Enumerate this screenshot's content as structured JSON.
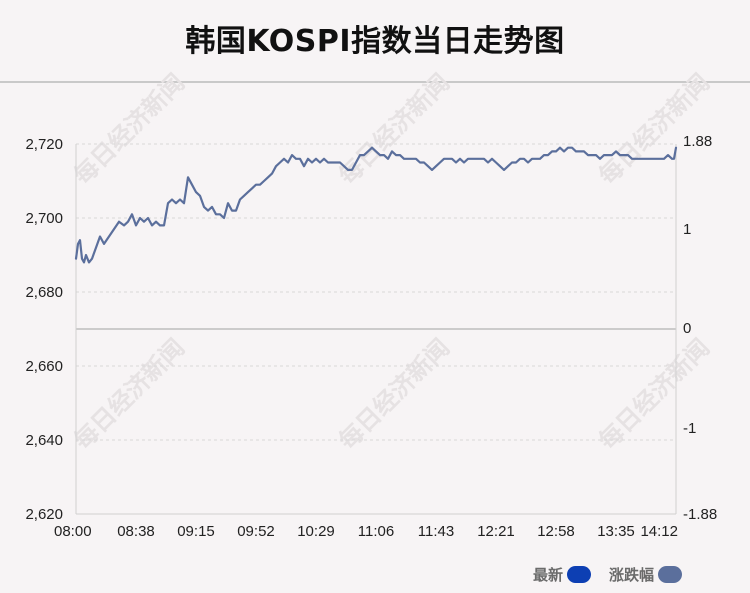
{
  "title": "韩国KOSPI指数当日走势图",
  "watermark": "每日经济新闻",
  "legend": {
    "latest_label": "最新",
    "latest_color": "#0d3fb3",
    "change_label": "涨跌幅",
    "change_color": "#5b6f9c"
  },
  "chart_data": {
    "type": "line",
    "title": "韩国KOSPI指数当日走势图",
    "x_ticks": [
      "08:00",
      "08:38",
      "09:15",
      "09:52",
      "10:29",
      "11:06",
      "11:43",
      "12:21",
      "12:58",
      "13:35",
      "14:12"
    ],
    "y_left": {
      "min": 2620,
      "max": 2720,
      "ticks": [
        "2,620",
        "2,640",
        "2,660",
        "2,680",
        "2,700",
        "2,720"
      ]
    },
    "y_right": {
      "ticks": [
        "-1.88",
        "-1",
        "0",
        "1",
        "1.88"
      ]
    },
    "baseline": 2670,
    "grid": "horizontal dashed",
    "line_color": "#5b6f9c",
    "series": [
      {
        "name": "最新",
        "x": [
          0,
          2,
          4,
          6,
          8,
          10,
          13,
          16,
          20,
          24,
          28,
          33,
          38,
          43,
          48,
          52,
          56,
          60,
          64,
          68,
          72,
          76,
          80,
          84,
          88,
          92,
          96,
          100,
          104,
          108,
          112,
          116,
          120,
          124,
          128,
          132,
          136,
          140,
          144,
          148,
          152,
          156,
          160,
          164,
          168,
          172,
          176,
          180,
          184,
          188,
          192,
          196,
          200,
          204,
          208,
          212,
          216,
          220,
          224,
          228,
          232,
          236,
          240,
          244,
          248,
          252,
          256,
          260,
          264,
          268,
          272,
          276,
          280,
          284,
          288,
          292,
          296,
          300,
          304,
          308,
          312,
          316,
          320,
          324,
          328,
          332,
          336,
          340,
          344,
          348,
          352,
          356,
          360,
          364,
          368,
          372,
          376,
          380,
          384,
          388,
          392,
          396,
          400,
          404,
          408,
          412,
          416,
          420,
          424,
          428,
          432,
          436,
          440,
          444,
          448,
          452,
          456,
          460,
          464,
          468,
          472,
          476,
          480,
          484,
          488,
          492,
          496,
          500,
          504,
          508,
          512,
          516,
          520,
          524,
          528,
          532,
          536,
          540,
          544,
          548,
          552,
          556,
          560,
          564,
          568,
          572,
          576,
          580,
          584,
          588,
          592,
          596,
          598,
          600
        ],
        "y": [
          2689,
          2693,
          2694,
          2689,
          2688,
          2690,
          2688,
          2689,
          2692,
          2695,
          2693,
          2695,
          2697,
          2699,
          2698,
          2699,
          2701,
          2698,
          2700,
          2699,
          2700,
          2698,
          2699,
          2698,
          2698,
          2704,
          2705,
          2704,
          2705,
          2704,
          2711,
          2709,
          2707,
          2706,
          2703,
          2702,
          2703,
          2701,
          2701,
          2700,
          2704,
          2702,
          2702,
          2705,
          2706,
          2707,
          2708,
          2709,
          2709,
          2710,
          2711,
          2712,
          2714,
          2715,
          2716,
          2715,
          2717,
          2716,
          2716,
          2714,
          2716,
          2715,
          2716,
          2715,
          2716,
          2715,
          2715,
          2715,
          2715,
          2714,
          2713,
          2713,
          2715,
          2717,
          2717,
          2718,
          2719,
          2718,
          2717,
          2717,
          2716,
          2718,
          2717,
          2717,
          2716,
          2716,
          2716,
          2716,
          2715,
          2715,
          2714,
          2713,
          2714,
          2715,
          2716,
          2716,
          2716,
          2715,
          2716,
          2715,
          2716,
          2716,
          2716,
          2716,
          2716,
          2715,
          2716,
          2715,
          2714,
          2713,
          2714,
          2715,
          2715,
          2716,
          2716,
          2715,
          2716,
          2716,
          2716,
          2717,
          2717,
          2718,
          2718,
          2719,
          2718,
          2719,
          2719,
          2718,
          2718,
          2718,
          2717,
          2717,
          2717,
          2716,
          2717,
          2717,
          2717,
          2718,
          2717,
          2717,
          2717,
          2716,
          2716,
          2716,
          2716,
          2716,
          2716,
          2716,
          2716,
          2716,
          2717,
          2716,
          2716,
          2719
        ]
      }
    ]
  }
}
